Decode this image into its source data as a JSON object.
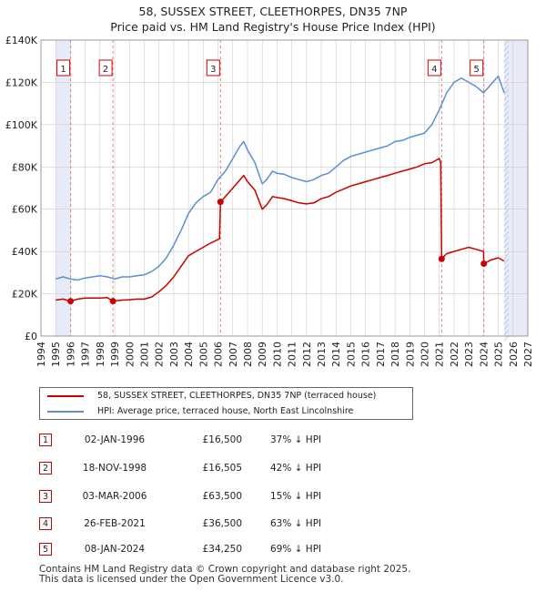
{
  "title": {
    "line1": "58, SUSSEX STREET, CLEETHORPES, DN35 7NP",
    "line2": "Price paid vs. HM Land Registry's House Price Index (HPI)"
  },
  "colors": {
    "property": "#cc0000",
    "hpi": "#5b8fd0",
    "shade": "#e6ebf7",
    "grid": "#cccccc"
  },
  "chart_data": {
    "type": "line",
    "xlim": [
      1994,
      2027
    ],
    "ylim": [
      0,
      140000
    ],
    "x_ticks": [
      1994,
      1995,
      1996,
      1997,
      1998,
      1999,
      2000,
      2001,
      2002,
      2003,
      2004,
      2005,
      2006,
      2007,
      2008,
      2009,
      2010,
      2011,
      2012,
      2013,
      2014,
      2015,
      2016,
      2017,
      2018,
      2019,
      2020,
      2021,
      2022,
      2023,
      2024,
      2025,
      2026,
      2027
    ],
    "y_ticks": [
      {
        "value": 0,
        "label": "£0"
      },
      {
        "value": 20000,
        "label": "£20K"
      },
      {
        "value": 40000,
        "label": "£40K"
      },
      {
        "value": 60000,
        "label": "£60K"
      },
      {
        "value": 80000,
        "label": "£80K"
      },
      {
        "value": 100000,
        "label": "£100K"
      },
      {
        "value": 120000,
        "label": "£120K"
      },
      {
        "value": 140000,
        "label": "£140K"
      }
    ],
    "data_range": [
      1995.0,
      2025.4
    ],
    "shaded_periods": [
      [
        1995.0,
        1996.0
      ],
      [
        2025.4,
        2027
      ]
    ],
    "series": [
      {
        "name": "HPI: Average price, terraced house, North East Lincolnshire",
        "color": "#5b8fd0",
        "x": [
          1995.0,
          1995.5,
          1996.0,
          1996.5,
          1997.0,
          1997.5,
          1998.0,
          1998.5,
          1999.0,
          1999.5,
          2000.0,
          2000.5,
          2001.0,
          2001.5,
          2002.0,
          2002.5,
          2003.0,
          2003.5,
          2004.0,
          2004.5,
          2005.0,
          2005.5,
          2006.0,
          2006.5,
          2007.0,
          2007.5,
          2007.75,
          2008.0,
          2008.5,
          2009.0,
          2009.3,
          2009.7,
          2010.0,
          2010.5,
          2011.0,
          2011.5,
          2012.0,
          2012.5,
          2013.0,
          2013.5,
          2014.0,
          2014.5,
          2015.0,
          2015.5,
          2016.0,
          2016.5,
          2017.0,
          2017.5,
          2018.0,
          2018.5,
          2019.0,
          2019.5,
          2020.0,
          2020.5,
          2021.0,
          2021.5,
          2022.0,
          2022.5,
          2023.0,
          2023.5,
          2024.0,
          2024.5,
          2025.0,
          2025.2,
          2025.4
        ],
        "values": [
          27000,
          28000,
          27000,
          26500,
          27500,
          28000,
          28500,
          28000,
          27000,
          28000,
          28000,
          28500,
          29000,
          30500,
          33000,
          37000,
          43000,
          50000,
          58000,
          63000,
          66000,
          68000,
          74000,
          78000,
          84000,
          90000,
          92000,
          88000,
          82000,
          72000,
          74000,
          78000,
          77000,
          76500,
          75000,
          74000,
          73000,
          74000,
          76000,
          77000,
          80000,
          83000,
          85000,
          86000,
          87000,
          88000,
          89000,
          90000,
          92000,
          92500,
          94000,
          95000,
          96000,
          100000,
          107000,
          115000,
          120000,
          122000,
          120000,
          118000,
          115000,
          119000,
          123000,
          119000,
          115000
        ]
      },
      {
        "name": "58, SUSSEX STREET, CLEETHORPES, DN35 7NP (terraced house)",
        "color": "#cc0000",
        "x": [
          1995.0,
          1995.5,
          1996.0,
          1996.5,
          1997.0,
          1997.5,
          1998.0,
          1998.5,
          1998.88,
          1999.5,
          2000.0,
          2000.5,
          2001.0,
          2001.5,
          2002.0,
          2002.5,
          2003.0,
          2003.5,
          2004.0,
          2004.5,
          2005.0,
          2005.5,
          2006.1,
          2006.17,
          2006.5,
          2007.0,
          2007.5,
          2007.75,
          2008.0,
          2008.5,
          2009.0,
          2009.3,
          2009.7,
          2010.0,
          2010.5,
          2011.0,
          2011.5,
          2012.0,
          2012.5,
          2013.0,
          2013.5,
          2014.0,
          2014.5,
          2015.0,
          2015.5,
          2016.0,
          2016.5,
          2017.0,
          2017.5,
          2018.0,
          2018.5,
          2019.0,
          2019.5,
          2020.0,
          2020.5,
          2021.0,
          2021.1,
          2021.16,
          2021.5,
          2022.0,
          2022.5,
          2023.0,
          2023.5,
          2024.0,
          2024.02,
          2024.5,
          2025.0,
          2025.4
        ],
        "values": [
          17000,
          17500,
          16500,
          17500,
          18000,
          18000,
          18000,
          18200,
          16505,
          17000,
          17200,
          17500,
          17500,
          18500,
          21000,
          24000,
          28000,
          33000,
          38000,
          40000,
          42000,
          44000,
          46000,
          63500,
          66000,
          70000,
          74000,
          76000,
          73000,
          69000,
          60000,
          62000,
          66000,
          65500,
          65000,
          64000,
          63000,
          62500,
          63000,
          65000,
          66000,
          68000,
          69500,
          71000,
          72000,
          73000,
          74000,
          75000,
          76000,
          77000,
          78000,
          79000,
          80000,
          81500,
          82000,
          84000,
          82000,
          36500,
          39000,
          40000,
          41000,
          42000,
          41000,
          40000,
          34250,
          36000,
          37000,
          35500
        ]
      }
    ],
    "sales": [
      {
        "num": "1",
        "x": 1996.01,
        "value": 16500
      },
      {
        "num": "2",
        "x": 1998.88,
        "value": 16505
      },
      {
        "num": "3",
        "x": 2006.17,
        "value": 63500
      },
      {
        "num": "4",
        "x": 2021.16,
        "value": 36500
      },
      {
        "num": "5",
        "x": 2024.02,
        "value": 34250
      }
    ]
  },
  "legend": {
    "property_label": "58, SUSSEX STREET, CLEETHORPES, DN35 7NP (terraced house)",
    "hpi_label": "HPI: Average price, terraced house, North East Lincolnshire"
  },
  "sales_table": [
    {
      "num": "1",
      "date": "02-JAN-1996",
      "price": "£16,500",
      "hpi": "37% ↓ HPI"
    },
    {
      "num": "2",
      "date": "18-NOV-1998",
      "price": "£16,505",
      "hpi": "42% ↓ HPI"
    },
    {
      "num": "3",
      "date": "03-MAR-2006",
      "price": "£63,500",
      "hpi": "15% ↓ HPI"
    },
    {
      "num": "4",
      "date": "26-FEB-2021",
      "price": "£36,500",
      "hpi": "63% ↓ HPI"
    },
    {
      "num": "5",
      "date": "08-JAN-2024",
      "price": "£34,250",
      "hpi": "69% ↓ HPI"
    }
  ],
  "footer": {
    "line1": "Contains HM Land Registry data © Crown copyright and database right 2025.",
    "line2": "This data is licensed under the Open Government Licence v3.0."
  }
}
